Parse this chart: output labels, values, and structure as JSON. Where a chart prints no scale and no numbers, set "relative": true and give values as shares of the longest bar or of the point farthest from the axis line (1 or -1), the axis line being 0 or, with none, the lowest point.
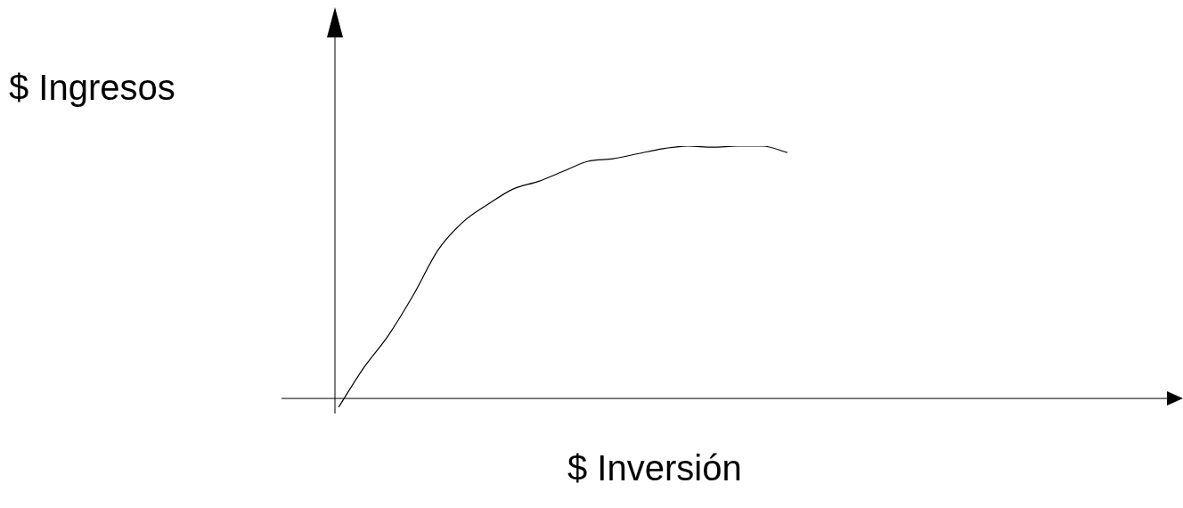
{
  "chart_data": {
    "type": "line",
    "relative": true,
    "xlabel": "$ Inversión",
    "ylabel": "$ Ingresos",
    "categories": [
      null,
      null,
      null,
      null,
      null,
      null,
      null,
      null,
      null,
      null,
      null,
      null,
      null,
      null,
      null,
      null,
      null,
      null,
      null
    ],
    "values": [
      -0.035,
      0.12,
      0.25,
      0.41,
      0.59,
      0.7,
      0.77,
      0.83,
      0.86,
      0.9,
      0.94,
      0.95,
      0.97,
      0.99,
      1,
      0.996,
      1,
      1,
      0.975
    ],
    "color": "#000000"
  }
}
